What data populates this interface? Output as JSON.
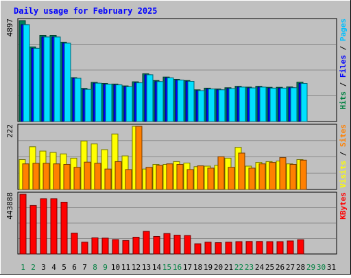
{
  "chart_data": {
    "type": "bar",
    "title": "Daily usage for February 2025",
    "days": [
      "1",
      "2",
      "3",
      "4",
      "5",
      "6",
      "7",
      "8",
      "9",
      "10",
      "11",
      "12",
      "13",
      "14",
      "15",
      "16",
      "17",
      "18",
      "19",
      "20",
      "21",
      "22",
      "23",
      "24",
      "25",
      "26",
      "27",
      "28",
      "29",
      "30",
      "31"
    ],
    "weekend_days": [
      "1",
      "2",
      "8",
      "9",
      "15",
      "16",
      "22",
      "23",
      "29",
      "30"
    ],
    "panels": [
      {
        "name": "hits-files-pages",
        "max_label": "4897",
        "ymax": 4897,
        "legend": [
          {
            "text": "Hits",
            "color": "#008040"
          },
          {
            "text": " / ",
            "color": "#000000"
          },
          {
            "text": "Files",
            "color": "#0000ff"
          },
          {
            "text": " / ",
            "color": "#000000"
          },
          {
            "text": "Pages",
            "color": "#00c0ff"
          }
        ],
        "series": [
          {
            "name": "Hits",
            "color": "#00805c",
            "values": [
              4897,
              3620,
              4180,
              4180,
              3850,
              2130,
              1610,
              1900,
              1850,
              1820,
              1730,
              1930,
              2320,
              1990,
              2160,
              2050,
              1990,
              1540,
              1620,
              1580,
              1640,
              1710,
              1670,
              1710,
              1660,
              1660,
              1680,
              1910,
              0,
              0,
              0
            ]
          },
          {
            "name": "Files",
            "color": "#0000ff",
            "values": [
              4700,
              3550,
              4100,
              4100,
              3800,
              2100,
              1560,
              1860,
              1810,
              1780,
              1690,
              1880,
              2270,
              1940,
              2120,
              2010,
              1950,
              1500,
              1580,
              1540,
              1600,
              1670,
              1630,
              1670,
              1620,
              1620,
              1640,
              1850,
              0,
              0,
              0
            ]
          },
          {
            "name": "Pages",
            "color": "#00e0ff",
            "values": [
              4700,
              3550,
              4100,
              4100,
              3800,
              2100,
              1560,
              1860,
              1810,
              1780,
              1690,
              1880,
              2270,
              1940,
              2120,
              2010,
              1950,
              1500,
              1580,
              1540,
              1600,
              1670,
              1630,
              1670,
              1620,
              1620,
              1640,
              1850,
              0,
              0,
              0
            ]
          }
        ]
      },
      {
        "name": "visits-sites",
        "max_label": "222",
        "ymax": 222,
        "legend": [
          {
            "text": "Visits",
            "color": "#ffff00"
          },
          {
            "text": " / ",
            "color": "#000000"
          },
          {
            "text": "Sites",
            "color": "#ff8000"
          }
        ],
        "series": [
          {
            "name": "Visits",
            "color": "#ffff00",
            "values": [
              105,
              150,
              135,
              130,
              125,
              110,
              170,
              160,
              140,
              195,
              118,
              222,
              72,
              88,
              88,
              98,
              93,
              80,
              82,
              85,
              110,
              148,
              82,
              95,
              98,
              100,
              90,
              105,
              0,
              0,
              0
            ]
          },
          {
            "name": "Sites",
            "color": "#ff8000",
            "values": [
              90,
              92,
              92,
              90,
              88,
              78,
              96,
              92,
              72,
              98,
              70,
              222,
              78,
              85,
              90,
              88,
              70,
              83,
              75,
              115,
              78,
              128,
              75,
              90,
              95,
              112,
              88,
              103,
              0,
              0,
              0
            ]
          }
        ]
      },
      {
        "name": "kbytes",
        "max_label": "443888",
        "ymax": 443888,
        "legend": [
          {
            "text": "KBytes",
            "color": "#ff0000"
          }
        ],
        "series": [
          {
            "name": "KBytes",
            "color": "#ff0000",
            "values": [
              443888,
              360000,
              410000,
              410000,
              385000,
              155000,
              88000,
              120000,
              118000,
              107000,
              100000,
              125000,
              168000,
              130000,
              152000,
              140000,
              137000,
              76000,
              88000,
              84000,
              88000,
              92000,
              93000,
              93000,
              92000,
              92000,
              97000,
              106000,
              0,
              0,
              0
            ]
          }
        ]
      }
    ]
  }
}
